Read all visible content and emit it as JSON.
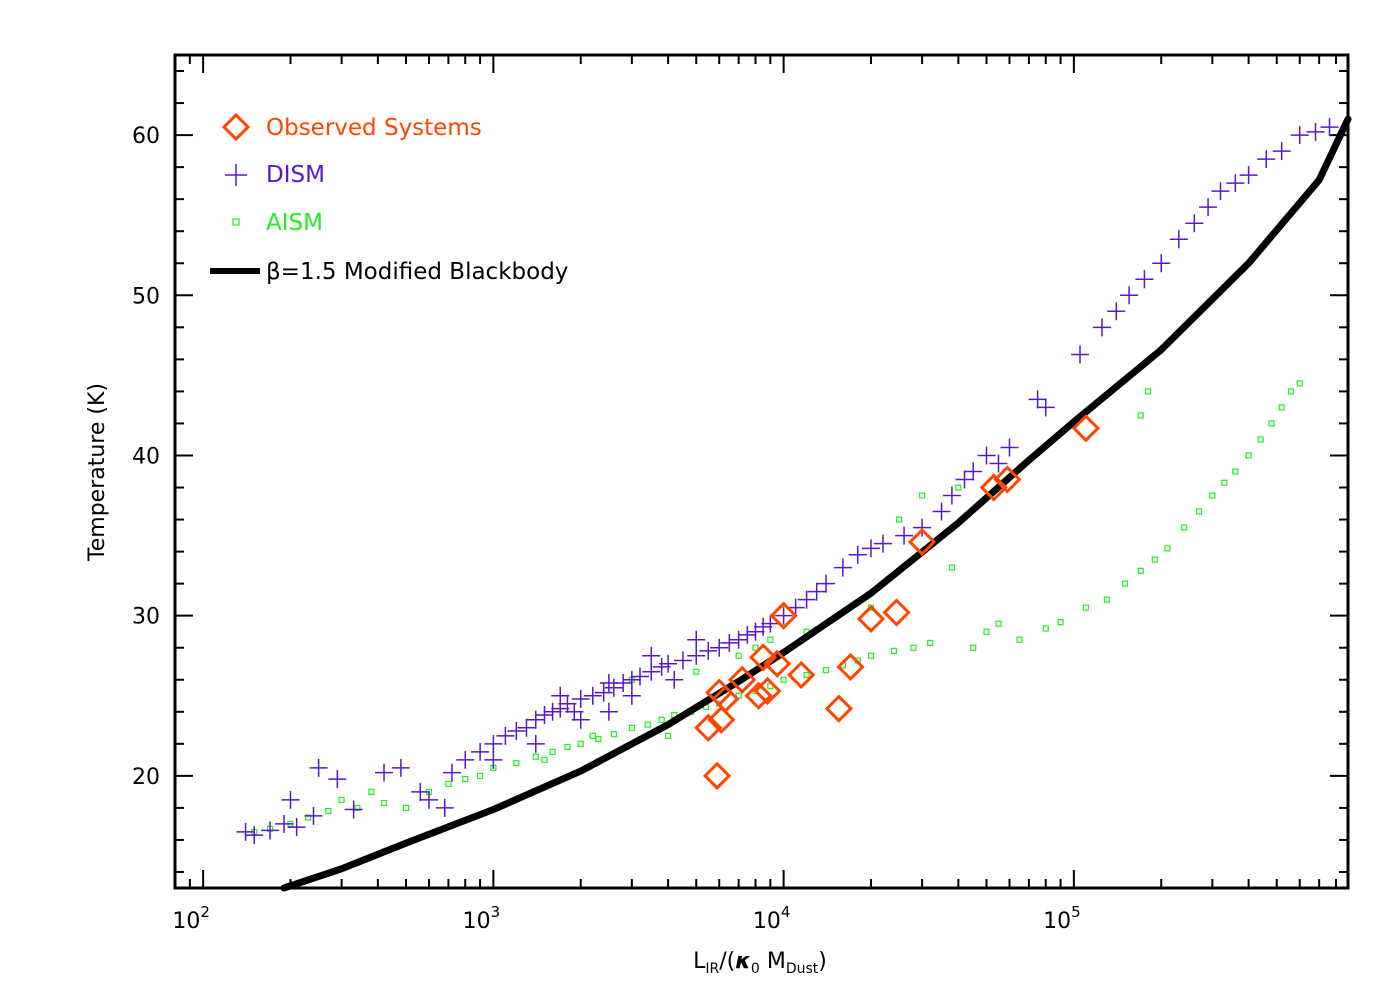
{
  "chart_data": {
    "type": "scatter",
    "title": "",
    "x_scale": "log",
    "xlim": [
      80,
      880000
    ],
    "ylim": [
      13,
      65
    ],
    "xlabel_main": "L",
    "xlabel_sub1": "IR",
    "xlabel_mid": "/(",
    "xlabel_kappa": "κ",
    "xlabel_kappa_sub": "0",
    "xlabel_mdust": " M",
    "xlabel_mdust_sub": "Dust",
    "xlabel_close": ")",
    "ylabel": "Temperature (K)",
    "x_ticks": [
      {
        "value": 100,
        "base": "10",
        "exp": "2"
      },
      {
        "value": 1000,
        "base": "10",
        "exp": "3"
      },
      {
        "value": 10000,
        "base": "10",
        "exp": "4"
      },
      {
        "value": 100000,
        "base": "10",
        "exp": "5"
      }
    ],
    "y_ticks": [
      "20",
      "30",
      "40",
      "50",
      "60"
    ],
    "grid": false,
    "legend_position": "top-left",
    "legend": [
      {
        "label": "Observed Systems",
        "marker": "diamond",
        "color": "#ff4500"
      },
      {
        "label": "DISM",
        "marker": "plus",
        "color": "#5b16c8"
      },
      {
        "label": "AISM",
        "marker": "square",
        "color": "#22ee22"
      },
      {
        "label": "β=1.5 Modified Blackbody",
        "marker": "line",
        "color": "#000000"
      }
    ],
    "series": [
      {
        "name": "Observed Systems",
        "marker": "diamond",
        "color": "#ff4500",
        "points": [
          [
            5500,
            23.0
          ],
          [
            5900,
            20.0
          ],
          [
            6000,
            25.2
          ],
          [
            6100,
            23.5
          ],
          [
            6300,
            24.8
          ],
          [
            7200,
            26.0
          ],
          [
            8200,
            25.0
          ],
          [
            8500,
            27.4
          ],
          [
            8800,
            25.3
          ],
          [
            9500,
            27.0
          ],
          [
            10000,
            30.0
          ],
          [
            11500,
            26.3
          ],
          [
            15500,
            24.2
          ],
          [
            17000,
            26.8
          ],
          [
            20000,
            29.8
          ],
          [
            24500,
            30.2
          ],
          [
            30000,
            34.6
          ],
          [
            53000,
            38.0
          ],
          [
            59000,
            38.5
          ],
          [
            110000,
            41.7
          ]
        ]
      },
      {
        "name": "DISM",
        "marker": "plus",
        "color": "#5b16c8",
        "points": [
          [
            140,
            16.5
          ],
          [
            150,
            16.3
          ],
          [
            170,
            16.6
          ],
          [
            190,
            17.0
          ],
          [
            210,
            16.8
          ],
          [
            200,
            18.5
          ],
          [
            250,
            20.5
          ],
          [
            240,
            17.5
          ],
          [
            290,
            19.8
          ],
          [
            330,
            17.9
          ],
          [
            420,
            20.2
          ],
          [
            480,
            20.5
          ],
          [
            560,
            19.0
          ],
          [
            600,
            18.5
          ],
          [
            680,
            18.0
          ],
          [
            720,
            20.2
          ],
          [
            800,
            21.0
          ],
          [
            900,
            21.5
          ],
          [
            1000,
            22.0
          ],
          [
            1100,
            22.5
          ],
          [
            1200,
            22.8
          ],
          [
            1300,
            23.0
          ],
          [
            1400,
            23.5
          ],
          [
            1500,
            23.8
          ],
          [
            1600,
            24.0
          ],
          [
            1700,
            24.2
          ],
          [
            1800,
            24.5
          ],
          [
            1900,
            24.0
          ],
          [
            2000,
            24.8
          ],
          [
            2200,
            25.0
          ],
          [
            2400,
            25.2
          ],
          [
            2600,
            25.5
          ],
          [
            2800,
            25.8
          ],
          [
            3000,
            26.0
          ],
          [
            3200,
            26.2
          ],
          [
            3500,
            26.5
          ],
          [
            3800,
            26.8
          ],
          [
            4000,
            27.0
          ],
          [
            4500,
            27.2
          ],
          [
            5000,
            27.5
          ],
          [
            5500,
            27.8
          ],
          [
            6000,
            28.0
          ],
          [
            6500,
            28.3
          ],
          [
            7000,
            28.5
          ],
          [
            7500,
            28.8
          ],
          [
            8000,
            29.0
          ],
          [
            8500,
            29.3
          ],
          [
            9000,
            29.5
          ],
          [
            10000,
            30.0
          ],
          [
            11000,
            30.5
          ],
          [
            12000,
            31.0
          ],
          [
            13000,
            31.5
          ],
          [
            14000,
            32.0
          ],
          [
            16000,
            33.0
          ],
          [
            18000,
            33.8
          ],
          [
            20000,
            34.2
          ],
          [
            22000,
            34.5
          ],
          [
            26000,
            35.0
          ],
          [
            30000,
            35.5
          ],
          [
            35000,
            36.5
          ],
          [
            38000,
            37.5
          ],
          [
            42000,
            38.5
          ],
          [
            45000,
            39.0
          ],
          [
            50000,
            40.0
          ],
          [
            55000,
            39.5
          ],
          [
            60000,
            40.5
          ],
          [
            75000,
            43.5
          ],
          [
            80000,
            43.0
          ],
          [
            105000,
            46.3
          ],
          [
            125000,
            48.0
          ],
          [
            140000,
            49.0
          ],
          [
            155000,
            50.0
          ],
          [
            175000,
            51.0
          ],
          [
            200000,
            52.0
          ],
          [
            230000,
            53.5
          ],
          [
            260000,
            54.5
          ],
          [
            290000,
            55.5
          ],
          [
            320000,
            56.5
          ],
          [
            360000,
            57.0
          ],
          [
            400000,
            57.5
          ],
          [
            460000,
            58.5
          ],
          [
            520000,
            59.0
          ],
          [
            600000,
            60.0
          ],
          [
            680000,
            60.2
          ],
          [
            760000,
            60.5
          ],
          [
            2500,
            25.8
          ],
          [
            3500,
            27.5
          ],
          [
            5000,
            28.5
          ],
          [
            4200,
            26.0
          ],
          [
            1700,
            25.0
          ],
          [
            2000,
            23.5
          ],
          [
            2500,
            24.0
          ],
          [
            1000,
            21.0
          ],
          [
            1400,
            22.0
          ],
          [
            3000,
            25.0
          ]
        ]
      },
      {
        "name": "AISM",
        "marker": "square",
        "color": "#22ee22",
        "points": [
          [
            150,
            16.5
          ],
          [
            170,
            16.7
          ],
          [
            200,
            17.0
          ],
          [
            230,
            17.4
          ],
          [
            270,
            17.8
          ],
          [
            300,
            18.5
          ],
          [
            340,
            18.0
          ],
          [
            380,
            19.0
          ],
          [
            420,
            18.3
          ],
          [
            500,
            18.0
          ],
          [
            600,
            19.0
          ],
          [
            700,
            19.5
          ],
          [
            800,
            19.8
          ],
          [
            900,
            20.0
          ],
          [
            1000,
            20.5
          ],
          [
            1200,
            20.8
          ],
          [
            1400,
            21.2
          ],
          [
            1600,
            21.5
          ],
          [
            1800,
            21.8
          ],
          [
            2000,
            22.0
          ],
          [
            2300,
            22.3
          ],
          [
            2600,
            22.6
          ],
          [
            3000,
            23.0
          ],
          [
            3400,
            23.2
          ],
          [
            3800,
            23.5
          ],
          [
            4200,
            23.8
          ],
          [
            4800,
            24.0
          ],
          [
            5400,
            24.3
          ],
          [
            6000,
            24.5
          ],
          [
            7000,
            25.0
          ],
          [
            8000,
            25.3
          ],
          [
            9000,
            25.6
          ],
          [
            10000,
            26.0
          ],
          [
            12000,
            26.3
          ],
          [
            14000,
            26.6
          ],
          [
            16000,
            26.9
          ],
          [
            18000,
            27.2
          ],
          [
            20000,
            27.5
          ],
          [
            24000,
            27.8
          ],
          [
            28000,
            28.0
          ],
          [
            32000,
            28.3
          ],
          [
            45000,
            28.0
          ],
          [
            50000,
            29.0
          ],
          [
            55000,
            29.5
          ],
          [
            65000,
            28.5
          ],
          [
            80000,
            29.2
          ],
          [
            90000,
            29.6
          ],
          [
            110000,
            30.5
          ],
          [
            130000,
            31.0
          ],
          [
            150000,
            32.0
          ],
          [
            170000,
            32.8
          ],
          [
            190000,
            33.5
          ],
          [
            210000,
            34.2
          ],
          [
            240000,
            35.5
          ],
          [
            270000,
            36.5
          ],
          [
            300000,
            37.5
          ],
          [
            330000,
            38.3
          ],
          [
            360000,
            39.0
          ],
          [
            400000,
            40.0
          ],
          [
            440000,
            41.0
          ],
          [
            480000,
            42.0
          ],
          [
            520000,
            43.0
          ],
          [
            560000,
            44.0
          ],
          [
            600000,
            44.5
          ],
          [
            180000,
            44.0
          ],
          [
            170000,
            42.5
          ],
          [
            9000,
            28.5
          ],
          [
            12000,
            29.0
          ],
          [
            25000,
            36.0
          ],
          [
            30000,
            37.5
          ],
          [
            40000,
            38.0
          ],
          [
            3000,
            26.0
          ],
          [
            5000,
            26.5
          ],
          [
            7000,
            27.5
          ],
          [
            8000,
            28.0
          ],
          [
            20000,
            30.5
          ],
          [
            38000,
            33.0
          ],
          [
            2200,
            22.5
          ],
          [
            1500,
            21.0
          ],
          [
            4000,
            22.5
          ]
        ]
      },
      {
        "name": "β=1.5 Modified Blackbody",
        "marker": "line",
        "color": "#000000",
        "points": [
          [
            190,
            13.0
          ],
          [
            300,
            14.2
          ],
          [
            500,
            15.8
          ],
          [
            1000,
            17.9
          ],
          [
            2000,
            20.3
          ],
          [
            4000,
            23.2
          ],
          [
            7000,
            25.9
          ],
          [
            10000,
            27.7
          ],
          [
            20000,
            31.4
          ],
          [
            40000,
            35.8
          ],
          [
            70000,
            39.7
          ],
          [
            100000,
            42.1
          ],
          [
            200000,
            46.6
          ],
          [
            400000,
            52.0
          ],
          [
            700000,
            57.2
          ],
          [
            880000,
            61.0
          ]
        ]
      }
    ]
  }
}
